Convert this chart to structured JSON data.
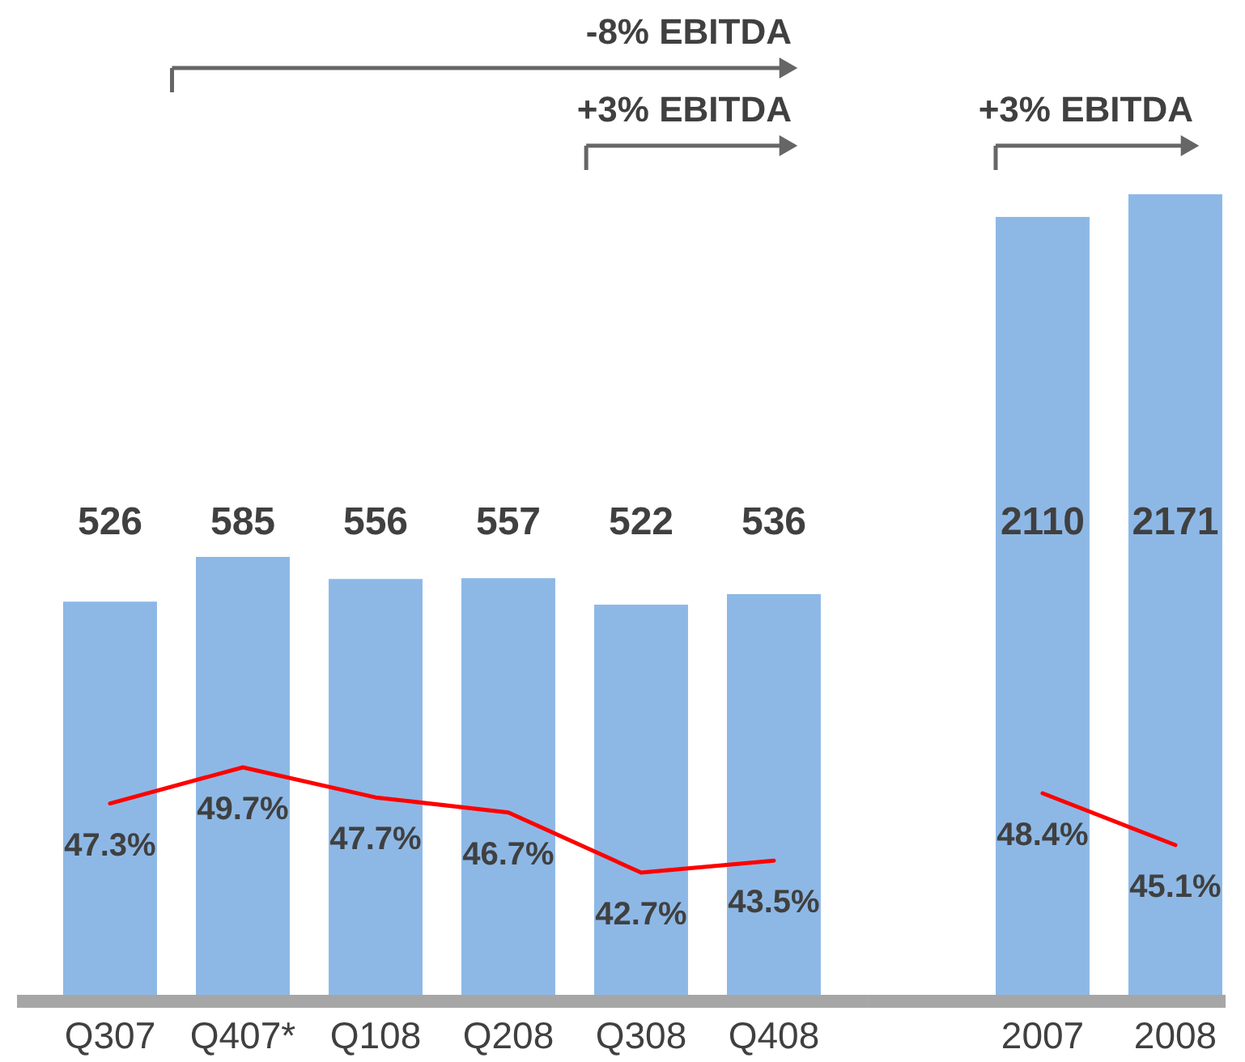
{
  "chart_data": [
    {
      "type": "bar",
      "categories": [
        "Q307",
        "Q407*",
        "Q108",
        "Q208",
        "Q308",
        "Q408"
      ],
      "series": [
        {
          "color": "#8db8e6",
          "values": [
            526,
            585,
            556,
            557,
            522,
            536
          ],
          "value_labels": [
            "526",
            "585",
            "556",
            "557",
            "522",
            "536"
          ]
        },
        {
          "type": "line",
          "axis": "y2",
          "color": "#ff0000",
          "values": [
            47.3,
            49.7,
            47.7,
            46.7,
            42.7,
            43.5
          ],
          "value_labels": [
            "47.3%",
            "49.7%",
            "47.7%",
            "46.7%",
            "42.7%",
            "43.5%"
          ]
        }
      ],
      "tick_labels": "x",
      "annotations": [
        "-8% EBITDA",
        "+3% EBITDA"
      ]
    },
    {
      "type": "bar",
      "categories": [
        "2007",
        "2008"
      ],
      "series": [
        {
          "color": "#8db8e6",
          "values": [
            2110,
            2171
          ],
          "value_labels": [
            "2110",
            "2171"
          ]
        },
        {
          "type": "line",
          "axis": "y2",
          "color": "#ff0000",
          "values": [
            48.4,
            45.1
          ],
          "value_labels": [
            "48.4%",
            "45.1%"
          ]
        }
      ],
      "tick_labels": "x",
      "annotations": [
        "+3% EBITDA"
      ]
    }
  ]
}
